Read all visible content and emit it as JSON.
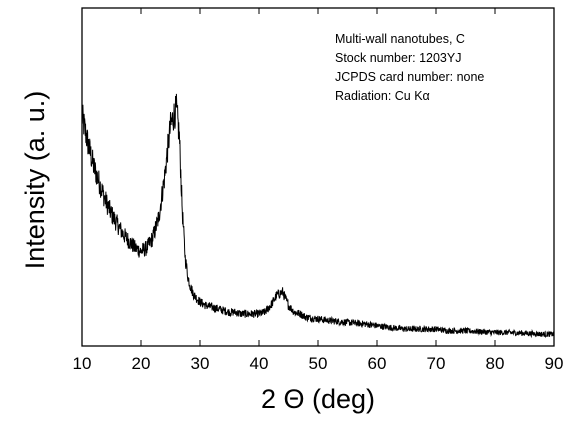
{
  "chart_data": {
    "type": "line",
    "title": "",
    "xlabel": "2 Θ (deg)",
    "ylabel": "Intensity (a. u.)",
    "xlim": [
      10,
      90
    ],
    "ylim": [
      0,
      100
    ],
    "x_ticks": [
      10,
      20,
      30,
      40,
      50,
      60,
      70,
      80,
      90
    ],
    "y_ticks_labeled": false,
    "grid": false,
    "legend": "none",
    "annotations": [
      "Multi-wall nanotubes, C",
      "Stock number: 1203YJ",
      "JCPDS card number: none",
      "Radiation: Cu Kα"
    ],
    "series": [
      {
        "color": "#000000",
        "x": [
          10,
          11,
          12,
          13,
          14,
          15,
          16,
          17,
          18,
          19,
          20,
          21,
          22,
          23,
          24,
          24.5,
          25,
          25.5,
          26,
          26.5,
          27,
          27.5,
          28,
          28.5,
          29,
          30,
          31,
          32,
          33,
          34,
          35,
          36,
          37,
          38,
          39,
          40,
          41,
          42,
          43,
          44,
          45,
          46,
          47,
          48,
          50,
          52,
          55,
          58,
          60,
          62,
          65,
          68,
          70,
          72,
          75,
          78,
          80,
          82,
          85,
          88,
          90
        ],
        "y": [
          68,
          60,
          53,
          48,
          43,
          39,
          36,
          33,
          31,
          29,
          28,
          29,
          32,
          38,
          50,
          58,
          65,
          68,
          70,
          62,
          40,
          26,
          20,
          17,
          15,
          13,
          12,
          11.5,
          11,
          10.5,
          10,
          10,
          9.5,
          9.5,
          9.5,
          9.5,
          10,
          12,
          15,
          16,
          12,
          10,
          9.5,
          8.5,
          8,
          7.5,
          7,
          6.5,
          6,
          5.5,
          5,
          5,
          5,
          4.5,
          4.5,
          4.2,
          4,
          4,
          3.8,
          3.5,
          3.5
        ]
      }
    ]
  }
}
